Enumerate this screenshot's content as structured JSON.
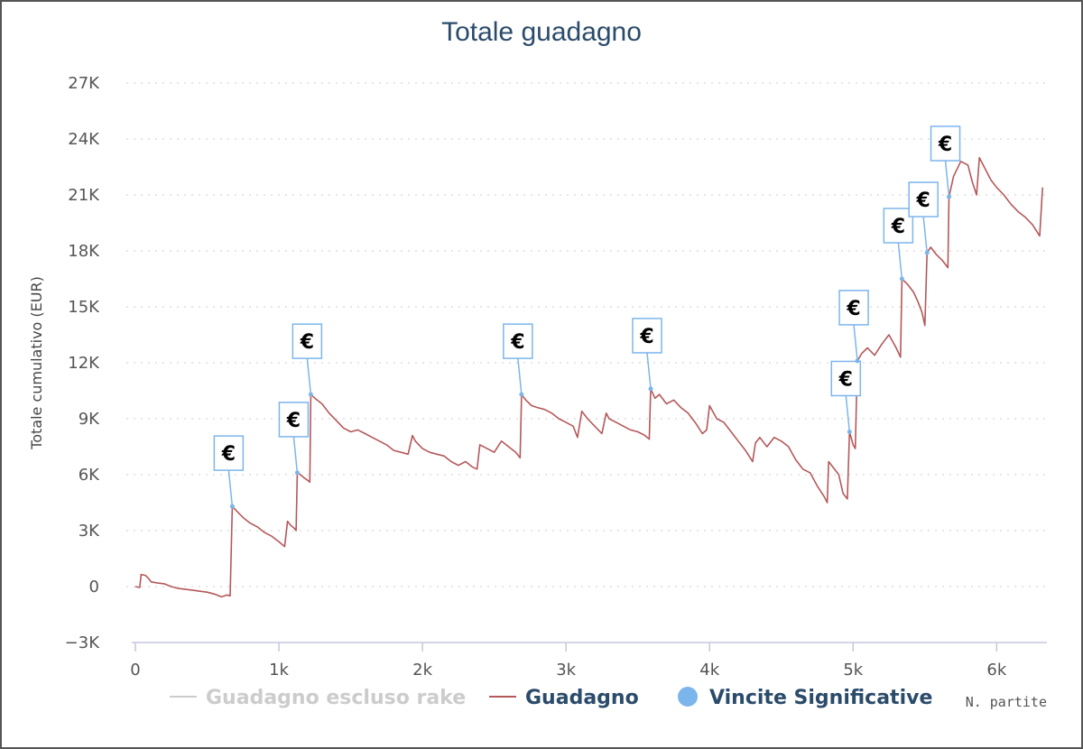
{
  "chart_data": {
    "type": "line",
    "title": "Totale guadagno",
    "xlabel": "N. partite",
    "ylabel": "Totale cumulativo (EUR)",
    "xlim": [
      0,
      6350
    ],
    "ylim": [
      -3000,
      27000
    ],
    "x_ticks": [
      {
        "value": 0,
        "label": "0"
      },
      {
        "value": 1000,
        "label": "1k"
      },
      {
        "value": 2000,
        "label": "2k"
      },
      {
        "value": 3000,
        "label": "3k"
      },
      {
        "value": 4000,
        "label": "4k"
      },
      {
        "value": 5000,
        "label": "5k"
      },
      {
        "value": 6000,
        "label": "6k"
      }
    ],
    "y_ticks": [
      {
        "value": -3000,
        "label": "−3K"
      },
      {
        "value": 0,
        "label": "0"
      },
      {
        "value": 3000,
        "label": "3K"
      },
      {
        "value": 6000,
        "label": "6K"
      },
      {
        "value": 9000,
        "label": "9K"
      },
      {
        "value": 12000,
        "label": "12K"
      },
      {
        "value": 15000,
        "label": "15K"
      },
      {
        "value": 18000,
        "label": "18K"
      },
      {
        "value": 21000,
        "label": "21K"
      },
      {
        "value": 24000,
        "label": "24K"
      },
      {
        "value": 27000,
        "label": "27K"
      }
    ],
    "grid": "horizontal dotted",
    "legend_position": "bottom",
    "series": [
      {
        "name": "Guadagno escluso rake",
        "color": "#cccccc",
        "hidden": true,
        "values": []
      },
      {
        "name": "Guadagno",
        "color": "#b5585a",
        "points": [
          [
            0,
            0
          ],
          [
            30,
            -50
          ],
          [
            40,
            650
          ],
          [
            70,
            600
          ],
          [
            90,
            450
          ],
          [
            110,
            250
          ],
          [
            150,
            200
          ],
          [
            200,
            150
          ],
          [
            250,
            0
          ],
          [
            300,
            -100
          ],
          [
            350,
            -150
          ],
          [
            400,
            -200
          ],
          [
            450,
            -250
          ],
          [
            500,
            -300
          ],
          [
            550,
            -400
          ],
          [
            600,
            -550
          ],
          [
            640,
            -450
          ],
          [
            660,
            -500
          ],
          [
            675,
            4300
          ],
          [
            700,
            4100
          ],
          [
            750,
            3700
          ],
          [
            800,
            3400
          ],
          [
            850,
            3200
          ],
          [
            900,
            2900
          ],
          [
            950,
            2700
          ],
          [
            1000,
            2400
          ],
          [
            1040,
            2150
          ],
          [
            1060,
            3500
          ],
          [
            1080,
            3300
          ],
          [
            1110,
            3100
          ],
          [
            1120,
            3000
          ],
          [
            1128,
            6100
          ],
          [
            1150,
            6000
          ],
          [
            1180,
            5800
          ],
          [
            1200,
            5700
          ],
          [
            1215,
            5600
          ],
          [
            1222,
            10300
          ],
          [
            1250,
            10100
          ],
          [
            1300,
            9800
          ],
          [
            1350,
            9300
          ],
          [
            1400,
            8900
          ],
          [
            1450,
            8500
          ],
          [
            1500,
            8300
          ],
          [
            1550,
            8400
          ],
          [
            1600,
            8200
          ],
          [
            1650,
            8000
          ],
          [
            1700,
            7800
          ],
          [
            1750,
            7600
          ],
          [
            1800,
            7300
          ],
          [
            1850,
            7200
          ],
          [
            1900,
            7100
          ],
          [
            1930,
            8100
          ],
          [
            1950,
            7800
          ],
          [
            2000,
            7400
          ],
          [
            2050,
            7200
          ],
          [
            2100,
            7100
          ],
          [
            2150,
            7000
          ],
          [
            2200,
            6700
          ],
          [
            2250,
            6500
          ],
          [
            2300,
            6700
          ],
          [
            2350,
            6400
          ],
          [
            2380,
            6300
          ],
          [
            2400,
            7600
          ],
          [
            2450,
            7400
          ],
          [
            2500,
            7200
          ],
          [
            2550,
            7800
          ],
          [
            2600,
            7500
          ],
          [
            2650,
            7200
          ],
          [
            2680,
            6900
          ],
          [
            2690,
            10300
          ],
          [
            2720,
            10000
          ],
          [
            2760,
            9700
          ],
          [
            2800,
            9600
          ],
          [
            2850,
            9500
          ],
          [
            2900,
            9300
          ],
          [
            2950,
            9000
          ],
          [
            3000,
            8800
          ],
          [
            3050,
            8600
          ],
          [
            3080,
            8000
          ],
          [
            3110,
            9400
          ],
          [
            3150,
            9000
          ],
          [
            3200,
            8600
          ],
          [
            3250,
            8200
          ],
          [
            3280,
            9300
          ],
          [
            3300,
            9000
          ],
          [
            3350,
            8800
          ],
          [
            3400,
            8600
          ],
          [
            3450,
            8400
          ],
          [
            3500,
            8300
          ],
          [
            3550,
            8100
          ],
          [
            3580,
            7900
          ],
          [
            3590,
            10600
          ],
          [
            3620,
            10100
          ],
          [
            3650,
            10300
          ],
          [
            3700,
            9800
          ],
          [
            3750,
            10000
          ],
          [
            3800,
            9600
          ],
          [
            3850,
            9300
          ],
          [
            3900,
            8800
          ],
          [
            3950,
            8200
          ],
          [
            3980,
            8400
          ],
          [
            4000,
            9700
          ],
          [
            4050,
            9000
          ],
          [
            4100,
            8800
          ],
          [
            4150,
            8300
          ],
          [
            4200,
            7800
          ],
          [
            4250,
            7300
          ],
          [
            4300,
            6700
          ],
          [
            4320,
            7700
          ],
          [
            4350,
            8000
          ],
          [
            4400,
            7500
          ],
          [
            4450,
            8000
          ],
          [
            4500,
            7800
          ],
          [
            4550,
            7500
          ],
          [
            4600,
            6800
          ],
          [
            4650,
            6300
          ],
          [
            4700,
            6100
          ],
          [
            4750,
            5400
          ],
          [
            4800,
            4800
          ],
          [
            4820,
            4500
          ],
          [
            4830,
            6700
          ],
          [
            4860,
            6400
          ],
          [
            4900,
            6000
          ],
          [
            4930,
            5000
          ],
          [
            4960,
            4700
          ],
          [
            4975,
            8300
          ],
          [
            5000,
            7600
          ],
          [
            5015,
            7400
          ],
          [
            5030,
            12100
          ],
          [
            5060,
            12500
          ],
          [
            5100,
            12800
          ],
          [
            5150,
            12400
          ],
          [
            5200,
            13000
          ],
          [
            5250,
            13500
          ],
          [
            5300,
            12800
          ],
          [
            5330,
            12300
          ],
          [
            5340,
            16500
          ],
          [
            5380,
            16200
          ],
          [
            5420,
            15800
          ],
          [
            5450,
            15300
          ],
          [
            5480,
            14700
          ],
          [
            5500,
            14000
          ],
          [
            5515,
            17900
          ],
          [
            5540,
            18200
          ],
          [
            5580,
            17800
          ],
          [
            5620,
            17500
          ],
          [
            5660,
            17100
          ],
          [
            5668,
            20900
          ],
          [
            5700,
            22000
          ],
          [
            5750,
            22800
          ],
          [
            5800,
            22600
          ],
          [
            5830,
            21700
          ],
          [
            5860,
            21000
          ],
          [
            5880,
            23000
          ],
          [
            5920,
            22400
          ],
          [
            5960,
            21800
          ],
          [
            6000,
            21400
          ],
          [
            6050,
            21000
          ],
          [
            6100,
            20500
          ],
          [
            6150,
            20100
          ],
          [
            6200,
            19800
          ],
          [
            6250,
            19400
          ],
          [
            6300,
            18800
          ],
          [
            6320,
            21400
          ]
        ]
      },
      {
        "name": "Vincite Significative",
        "color": "#7cb5ec",
        "marker_label": "€",
        "points": [
          [
            675,
            4300
          ],
          [
            1128,
            6100
          ],
          [
            1222,
            10300
          ],
          [
            2690,
            10300
          ],
          [
            3590,
            10600
          ],
          [
            4975,
            8300
          ],
          [
            5030,
            12100
          ],
          [
            5340,
            16500
          ],
          [
            5515,
            17900
          ],
          [
            5668,
            20900
          ]
        ]
      }
    ]
  }
}
